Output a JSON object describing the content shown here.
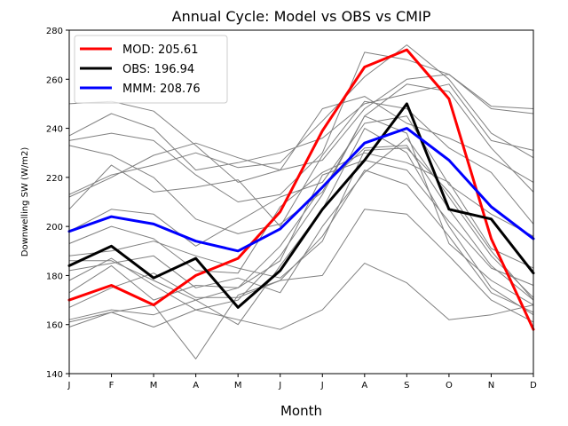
{
  "chart_data": {
    "type": "line",
    "title": "Annual Cycle: Model vs OBS vs CMIP",
    "xlabel": "Month",
    "ylabel": "Downwelling SW (W/m2)",
    "categories": [
      "J",
      "F",
      "M",
      "A",
      "M",
      "J",
      "J",
      "A",
      "S",
      "O",
      "N",
      "D"
    ],
    "ylim": [
      140,
      280
    ],
    "yticks": [
      140,
      160,
      180,
      200,
      220,
      240,
      260,
      280
    ],
    "legend_position": "top-left",
    "series": [
      {
        "name": "MOD",
        "legend_label": "MOD: 205.61",
        "color": "#ff0000",
        "values": [
          170,
          176,
          168,
          180,
          187,
          206,
          239,
          265,
          272,
          252,
          195,
          158
        ]
      },
      {
        "name": "OBS",
        "legend_label": "OBS: 196.94",
        "color": "#000000",
        "values": [
          184,
          192,
          179,
          187,
          167,
          182,
          207,
          227,
          250,
          207,
          203,
          181
        ]
      },
      {
        "name": "MMM",
        "legend_label": "MMM: 208.76",
        "color": "#0000ff",
        "values": [
          198,
          204,
          201,
          194,
          190,
          199,
          216,
          234,
          240,
          227,
          208,
          195
        ]
      }
    ],
    "cmip_color": "#808080",
    "cmip_members": [
      [
        250,
        251,
        247,
        233,
        218,
        223,
        227,
        248,
        260,
        262,
        248,
        246
      ],
      [
        237,
        246,
        240,
        223,
        226,
        230,
        236,
        250,
        254,
        258,
        235,
        231
      ],
      [
        235,
        238,
        235,
        221,
        210,
        213,
        230,
        271,
        268,
        262,
        249,
        248
      ],
      [
        213,
        221,
        225,
        230,
        224,
        226,
        243,
        261,
        274,
        260,
        238,
        228
      ],
      [
        233,
        229,
        220,
        203,
        197,
        201,
        214,
        245,
        258,
        255,
        232,
        214
      ],
      [
        212,
        220,
        229,
        234,
        228,
        223,
        248,
        253,
        242,
        236,
        228,
        218
      ],
      [
        207,
        225,
        214,
        216,
        219,
        200,
        229,
        251,
        248,
        232,
        222,
        201
      ],
      [
        198,
        207,
        205,
        192,
        202,
        212,
        218,
        242,
        245,
        217,
        205,
        196
      ],
      [
        193,
        200,
        195,
        182,
        181,
        208,
        222,
        230,
        226,
        218,
        191,
        183
      ],
      [
        188,
        190,
        194,
        188,
        183,
        179,
        194,
        231,
        232,
        214,
        190,
        170
      ],
      [
        186,
        186,
        178,
        170,
        175,
        186,
        221,
        227,
        223,
        202,
        183,
        176
      ],
      [
        182,
        185,
        188,
        175,
        179,
        173,
        200,
        222,
        236,
        212,
        188,
        171
      ],
      [
        178,
        187,
        176,
        166,
        170,
        188,
        213,
        245,
        238,
        193,
        178,
        168
      ],
      [
        173,
        184,
        170,
        176,
        175,
        192,
        216,
        232,
        233,
        207,
        184,
        170
      ],
      [
        162,
        166,
        164,
        170,
        160,
        184,
        207,
        240,
        230,
        200,
        175,
        164
      ],
      [
        167,
        175,
        181,
        171,
        171,
        178,
        196,
        223,
        217,
        196,
        173,
        165
      ],
      [
        161,
        165,
        168,
        146,
        172,
        178,
        180,
        207,
        205,
        188,
        170,
        161
      ],
      [
        159,
        165,
        159,
        166,
        162,
        158,
        166,
        185,
        177,
        162,
        164,
        168
      ]
    ]
  }
}
